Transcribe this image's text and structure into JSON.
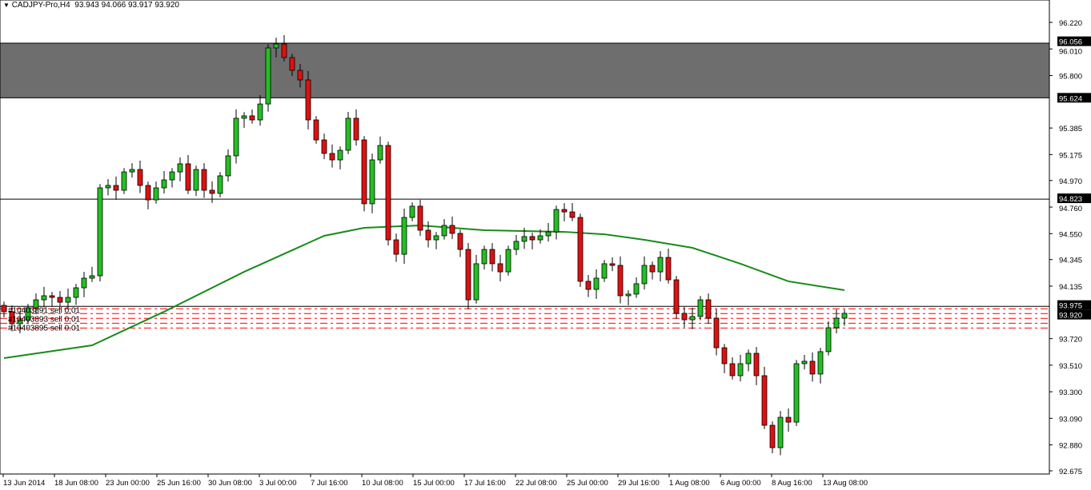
{
  "header": {
    "symbol": "CADJPY-Pro,H4",
    "ohlc": "93.943 94.066 93.917 93.920",
    "menu_icon": "triangle-down-icon"
  },
  "chart_data": {
    "type": "candlestick",
    "symbol": "CADJPY-Pro",
    "timeframe": "H4",
    "ylim": [
      92.675,
      96.22
    ],
    "y_ticks": [
      "96.220",
      "96.010",
      "95.800",
      "95.385",
      "95.175",
      "94.970",
      "94.760",
      "94.550",
      "94.345",
      "94.135",
      "93.720",
      "93.510",
      "93.300",
      "93.090",
      "92.880",
      "92.675"
    ],
    "x_ticks": [
      "13 Jun 2014",
      "18 Jun 08:00",
      "23 Jun 00:00",
      "25 Jun 16:00",
      "30 Jun 08:00",
      "3 Jul 00:00",
      "7 Jul 16:00",
      "10 Jul 08:00",
      "15 Jul 00:00",
      "17 Jul 16:00",
      "22 Jul 08:00",
      "25 Jul 00:00",
      "29 Jul 16:00",
      "1 Aug 08:00",
      "6 Aug 00:00",
      "8 Aug 16:00",
      "13 Aug 08:00"
    ],
    "closes": [
      93.933,
      93.838,
      93.869,
      93.964,
      94.027,
      94.059,
      94.046,
      94.008,
      94.046,
      94.122,
      94.198,
      94.217,
      94.912,
      94.931,
      94.893,
      95.038,
      95.057,
      94.931,
      94.817,
      94.912,
      94.975,
      95.038,
      95.102,
      94.893,
      95.057,
      94.893,
      94.868,
      95.007,
      95.165,
      95.462,
      95.481,
      95.449,
      95.575,
      96.018,
      96.049,
      95.942,
      95.841,
      95.765,
      95.449,
      95.291,
      95.184,
      95.133,
      95.209,
      95.462,
      95.291,
      94.786,
      95.133,
      95.247,
      94.501,
      94.387,
      94.678,
      94.767,
      94.577,
      94.501,
      94.533,
      94.615,
      94.552,
      94.425,
      94.027,
      94.312,
      94.425,
      94.312,
      94.248,
      94.425,
      94.489,
      94.527,
      94.501,
      94.533,
      94.564,
      94.741,
      94.722,
      94.678,
      94.173,
      94.109,
      94.198,
      94.312,
      94.299,
      94.059,
      94.072,
      94.154,
      94.299,
      94.248,
      94.362,
      94.185,
      93.92,
      93.869,
      93.895,
      94.027,
      93.882,
      93.648,
      93.522,
      93.427,
      93.522,
      93.604,
      93.427,
      93.035,
      92.858,
      93.098,
      93.06,
      93.522,
      93.541,
      93.44,
      93.617,
      93.806,
      93.882,
      93.92
    ],
    "moving_average": {
      "color": "#1a8a1a",
      "points": [
        [
          0,
          93.566
        ],
        [
          11,
          93.667
        ],
        [
          20,
          93.933
        ],
        [
          30,
          94.248
        ],
        [
          40,
          94.533
        ],
        [
          45,
          94.596
        ],
        [
          52,
          94.615
        ],
        [
          60,
          94.577
        ],
        [
          70,
          94.564
        ],
        [
          75,
          94.545
        ],
        [
          80,
          94.501
        ],
        [
          86,
          94.438
        ],
        [
          92,
          94.312
        ],
        [
          98,
          94.173
        ],
        [
          105,
          94.103
        ]
      ]
    },
    "zone": {
      "top": 96.056,
      "bottom": 95.624,
      "color": "#6e6e6e"
    },
    "hlines": [
      {
        "price": 96.056,
        "label": "96.056"
      },
      {
        "price": 95.624,
        "label": "95.624"
      },
      {
        "price": 94.823,
        "label": "94.823"
      },
      {
        "price": 93.975,
        "label": "93.975"
      }
    ],
    "current_price": {
      "price": 93.92,
      "label": "93.920"
    },
    "order_lines": [
      93.956,
      93.918,
      93.88,
      93.842,
      93.804
    ],
    "orders": [
      "#10403891 sell 0.01",
      "#10403893 sell 0.01",
      "#10403895 sell 0.01"
    ],
    "colors": {
      "up": "#22c022",
      "down": "#e01010",
      "order_line": "#ff0000",
      "grid_axis": "#000000"
    }
  }
}
